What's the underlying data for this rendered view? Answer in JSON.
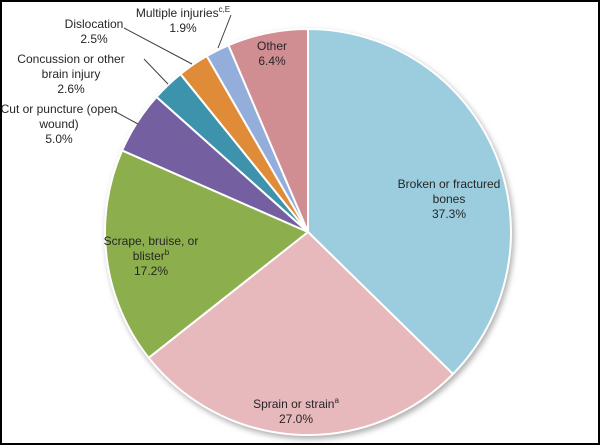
{
  "figure": {
    "background": "#ffffff",
    "frame_border_color": "#000000",
    "text_color": "#262626",
    "leader_line_color": "#404040",
    "slice_outline_color": "#ffffff"
  },
  "chart_data": {
    "type": "pie",
    "title": "",
    "direction": "clockwise",
    "start_angle_deg_from_top": 0,
    "center": [
      306,
      230
    ],
    "radius": 203,
    "slices": [
      {
        "label": "Broken or fractured bones",
        "sup": "",
        "value": 37.3,
        "pct_label": "37.3%",
        "color": "#9BCDDE"
      },
      {
        "label": "Sprain or strain",
        "sup": "a",
        "value": 27.0,
        "pct_label": "27.0%",
        "color": "#E7B8BC"
      },
      {
        "label": "Scrape, bruise, or blister",
        "sup": "b",
        "value": 17.2,
        "pct_label": "17.2%",
        "color": "#8DAE4C"
      },
      {
        "label": "Cut or puncture (open wound)",
        "sup": "",
        "value": 5.0,
        "pct_label": "5.0%",
        "color": "#7460A0"
      },
      {
        "label": "Concussion or other brain injury",
        "sup": "",
        "value": 2.6,
        "pct_label": "2.6%",
        "color": "#3E93AC"
      },
      {
        "label": "Dislocation",
        "sup": "",
        "value": 2.5,
        "pct_label": "2.5%",
        "color": "#E08B38"
      },
      {
        "label": "Multiple injuries",
        "sup": "c,E",
        "value": 1.9,
        "pct_label": "1.9%",
        "color": "#94AEDB"
      },
      {
        "label": "Other",
        "sup": "",
        "value": 6.4,
        "pct_label": "6.4%",
        "color": "#D08E93"
      }
    ]
  },
  "labels": {
    "broken": {
      "line1": "Broken or fractured",
      "line2": "bones",
      "pct": "37.3%"
    },
    "sprain": {
      "line1": "Sprain or strain",
      "sup": "a",
      "pct": "27.0%"
    },
    "scrape": {
      "line1": "Scrape, bruise, or",
      "line2": "blister",
      "sup": "b",
      "pct": "17.2%"
    },
    "cut": {
      "line1": "Cut or puncture (open",
      "line2": "wound)",
      "pct": "5.0%"
    },
    "concussion": {
      "line1": "Concussion or other",
      "line2": "brain injury",
      "pct": "2.6%"
    },
    "dislocation": {
      "line1": "Dislocation",
      "pct": "2.5%"
    },
    "multiple": {
      "line1": "Multiple injuries",
      "sup": "c,E",
      "pct": "1.9%"
    },
    "other": {
      "line1": "Other",
      "pct": "6.4%"
    }
  }
}
